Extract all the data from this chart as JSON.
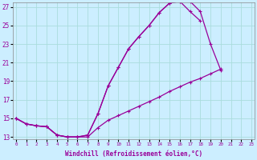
{
  "xlabel": "Windchill (Refroidissement éolien,°C)",
  "background_color": "#cceeff",
  "line_color": "#990099",
  "grid_color": "#aadddd",
  "xlim_min": 0,
  "xlim_max": 23,
  "ylim_min": 13,
  "ylim_max": 27.5,
  "xticks": [
    0,
    1,
    2,
    3,
    4,
    5,
    6,
    7,
    8,
    9,
    10,
    11,
    12,
    13,
    14,
    15,
    16,
    17,
    18,
    19,
    20,
    21,
    22,
    23
  ],
  "yticks": [
    13,
    15,
    17,
    19,
    21,
    23,
    25,
    27
  ],
  "curve1_x": [
    0,
    1,
    2,
    3,
    4,
    5,
    6,
    7,
    8,
    9,
    10,
    11,
    12,
    13,
    14,
    15,
    16,
    17,
    18,
    19,
    20,
    21,
    22,
    23
  ],
  "curve1_y": [
    15.0,
    14.4,
    14.2,
    14.1,
    13.2,
    13.0,
    13.0,
    13.2,
    15.5,
    18.5,
    20.5,
    22.5,
    23.8,
    25.0,
    26.4,
    27.4,
    27.6,
    27.6,
    26.5,
    23.0,
    20.2,
    null,
    null,
    null
  ],
  "curve2_x": [
    0,
    1,
    2,
    3,
    4,
    5,
    6,
    7,
    8,
    9,
    10,
    11,
    12,
    13,
    14,
    15,
    16,
    17,
    18,
    19,
    20,
    21,
    22,
    23
  ],
  "curve2_y": [
    15.0,
    14.4,
    14.2,
    14.1,
    13.2,
    13.0,
    13.0,
    13.2,
    15.5,
    18.5,
    20.5,
    22.5,
    23.8,
    25.0,
    26.4,
    27.4,
    27.6,
    26.5,
    25.5,
    null,
    null,
    null,
    null,
    null
  ],
  "curve3_x": [
    0,
    1,
    2,
    3,
    4,
    5,
    6,
    7,
    8,
    9,
    10,
    11,
    12,
    13,
    14,
    15,
    16,
    17,
    18,
    19,
    20,
    21,
    22,
    23
  ],
  "curve3_y": [
    15.0,
    14.4,
    14.2,
    14.1,
    13.2,
    13.0,
    13.0,
    13.0,
    14.0,
    14.8,
    15.3,
    15.8,
    16.3,
    16.8,
    17.3,
    17.9,
    18.4,
    18.9,
    19.3,
    19.8,
    20.3,
    null,
    null,
    null
  ],
  "marker_size": 3,
  "line_width": 0.9,
  "tick_fontsize": 5,
  "xlabel_fontsize": 5.5
}
